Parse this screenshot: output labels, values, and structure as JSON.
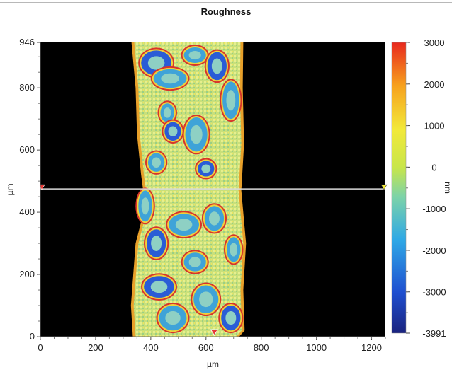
{
  "chart_data": {
    "type": "heatmap",
    "title": "Roughness",
    "xlabel": "µm",
    "ylabel": "µm",
    "colorbar_label": "nm",
    "xlim": [
      0,
      1250
    ],
    "ylim": [
      0,
      946
    ],
    "x_ticks": [
      0,
      200,
      400,
      600,
      800,
      1000,
      1200
    ],
    "y_ticks": [
      0,
      200,
      400,
      600,
      800,
      946
    ],
    "colorbar_range": [
      -3991,
      3000
    ],
    "colorbar_ticks": [
      3000,
      2000,
      1000,
      0,
      -1000,
      -2000,
      -3000,
      -3991
    ],
    "colormap": [
      "#1a237e",
      "#1f4fd0",
      "#2ea8e6",
      "#7dd3a8",
      "#c8e64a",
      "#f2e93a",
      "#f7a21e",
      "#e8281e"
    ],
    "profile_line_y": 475,
    "marker_x": 630,
    "background_color": "#000000",
    "grid": false
  }
}
